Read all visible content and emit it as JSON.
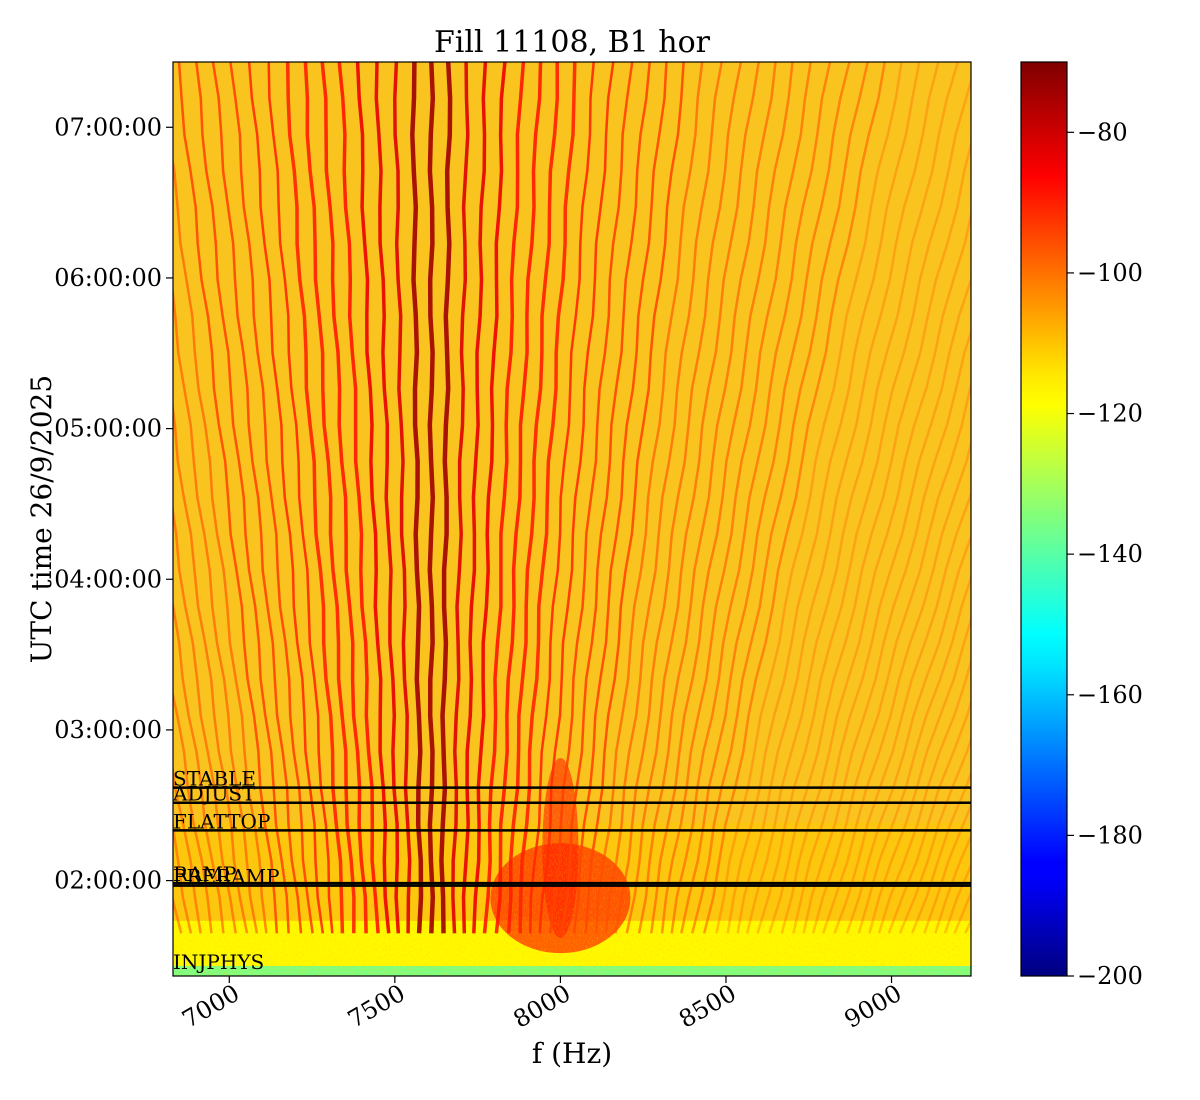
{
  "chart_data": {
    "type": "heatmap",
    "title": "Fill 11108, B1 hor",
    "xlabel": "f (Hz)",
    "ylabel": "UTC time 26/9/2025",
    "xlim": [
      6830,
      9240
    ],
    "x_ticks": [
      7000,
      7500,
      8000,
      8500,
      9000
    ],
    "x_tick_labels": [
      "7000",
      "7500",
      "8000",
      "8500",
      "9000"
    ],
    "ylim": [
      "01:22:00",
      "07:26:00"
    ],
    "y_ticks": [
      "02:00:00",
      "03:00:00",
      "04:00:00",
      "05:00:00",
      "06:00:00",
      "07:00:00"
    ],
    "y_tick_labels": [
      "02:00:00",
      "03:00:00",
      "04:00:00",
      "05:00:00",
      "06:00:00",
      "07:00:00"
    ],
    "colormap": "jet",
    "colorbar": {
      "min": -200,
      "max": -70,
      "ticks": [
        -80,
        -100,
        -120,
        -140,
        -160,
        -180,
        -200
      ],
      "tick_labels": [
        "−80",
        "−100",
        "−120",
        "−140",
        "−160",
        "−180",
        "−200"
      ]
    },
    "phases": [
      {
        "label": "INJPHYS",
        "time": "01:24:00"
      },
      {
        "label": "PRERAMP",
        "time": "01:58:00"
      },
      {
        "label": "RAMP",
        "time": "01:59:00"
      },
      {
        "label": "FLATTOP",
        "time": "02:20:00"
      },
      {
        "label": "ADJUST",
        "time": "02:31:00"
      },
      {
        "label": "STABLE",
        "time": "02:37:00"
      }
    ],
    "features": {
      "line_spacing_hz": 33,
      "strongest_line_hz": 7610,
      "background_level": -105,
      "low_band_level": -135
    }
  }
}
